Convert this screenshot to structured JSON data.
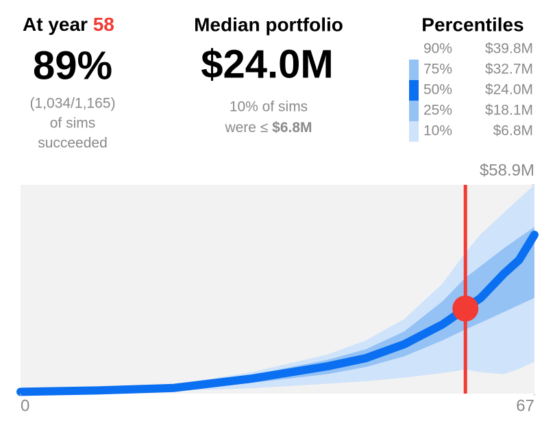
{
  "header": {
    "year_label": "At year",
    "year": "58",
    "success_pct": "89%",
    "success_lines": [
      "(1,034/1,165)",
      "of sims",
      "succeeded"
    ],
    "median_title": "Median portfolio",
    "median_value": "$24.0M",
    "low_line1": "10% of sims",
    "low_line2": "were ≤",
    "low_value": "$6.8M",
    "percentiles_title": "Percentiles",
    "percentiles": [
      {
        "pct": "90%",
        "value": "$39.8M"
      },
      {
        "pct": "75%",
        "value": "$32.7M"
      },
      {
        "pct": "50%",
        "value": "$24.0M"
      },
      {
        "pct": "25%",
        "value": "$18.1M"
      },
      {
        "pct": "10%",
        "value": "$6.8M"
      }
    ]
  },
  "chart_data": {
    "type": "fan",
    "x": [
      0,
      10,
      20,
      30,
      40,
      45,
      50,
      55,
      58,
      60,
      63,
      65,
      67
    ],
    "series": [
      {
        "color": "#cfe3fa",
        "values": [
          0.3,
          0.5,
          0.8,
          1.5,
          2.8,
          3.5,
          4.5,
          5.8,
          6.8,
          6.0,
          5.5,
          7,
          9
        ]
      },
      {
        "color": "#94c2f5",
        "values": [
          0.4,
          0.7,
          1.2,
          3,
          5.5,
          7.5,
          10.5,
          15,
          18.1,
          20,
          23,
          25,
          27
        ]
      },
      {
        "color": "#0a6ff0",
        "values": [
          0.5,
          0.9,
          1.6,
          4.2,
          7.7,
          10,
          13.9,
          19.5,
          24.0,
          27,
          33.8,
          37.7,
          44.8
        ]
      },
      {
        "color": "#94c2f5",
        "values": [
          0.6,
          1.1,
          2.1,
          5.2,
          9.5,
          12.5,
          17.5,
          26,
          32.7,
          36,
          41,
          44,
          47
        ]
      },
      {
        "color": "#cfe3fa",
        "values": [
          0.7,
          1.3,
          2.5,
          6,
          11,
          15,
          21,
          31,
          39.8,
          45,
          51,
          55,
          58.9
        ]
      }
    ],
    "xlim": [
      0,
      67
    ],
    "xticks": [
      0,
      67
    ],
    "ylim": [
      0,
      58.9
    ],
    "yticks": [
      {
        "value": 58.9,
        "label": "$58.9M"
      }
    ],
    "marker": {
      "x": 58,
      "y": 24.0,
      "color": "#f23b35"
    }
  }
}
